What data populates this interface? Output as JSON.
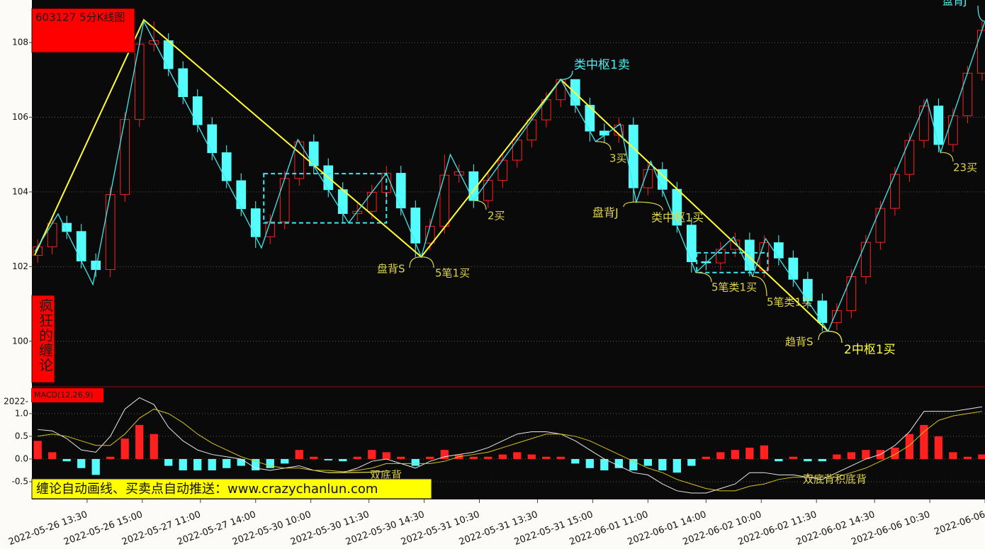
{
  "chart_data": [
    {
      "type": "candlestick",
      "title": "603127 5分K线图",
      "subtitle": "疯狂的缠论",
      "x": [
        2,
        7,
        12,
        17,
        22,
        27,
        32,
        37,
        42,
        47,
        52,
        57,
        62,
        67,
        72,
        77,
        82,
        87,
        92,
        97,
        102,
        107,
        112,
        117,
        122,
        127,
        132,
        137,
        142,
        147,
        152,
        157,
        162,
        167,
        172,
        177,
        182,
        187,
        192,
        197,
        202,
        207,
        212,
        217,
        222,
        227,
        232,
        237,
        242,
        247,
        252,
        257,
        262,
        267,
        272,
        277,
        282,
        287,
        292,
        297,
        302,
        307,
        312,
        317,
        322,
        327
      ],
      "open": [
        102.3,
        102.53,
        103.16,
        102.94,
        102.15,
        101.92,
        103.93,
        105.94,
        107.96,
        108.05,
        107.3,
        106.55,
        105.8,
        105.05,
        104.3,
        103.55,
        102.8,
        103.2,
        104.36,
        105.34,
        104.7,
        104.06,
        103.42,
        103.48,
        103.99,
        104.5,
        103.57,
        102.63,
        103.08,
        104.45,
        104.54,
        103.77,
        104.31,
        104.85,
        105.39,
        105.93,
        106.47,
        107.01,
        106.32,
        105.63,
        105.52,
        105.79,
        104.11,
        104.6,
        104.07,
        103.11,
        102.13,
        102.1,
        102.46,
        102.71,
        101.9,
        102.64,
        102.23,
        101.66,
        101.08,
        100.5,
        100.82,
        101.73,
        102.65,
        103.56,
        104.47,
        105.38,
        106.3,
        105.27,
        106.04,
        107.18
      ],
      "high": [
        102.73,
        103.36,
        103.36,
        103.14,
        102.35,
        104.13,
        106.14,
        108.16,
        108.57,
        108.25,
        107.5,
        106.75,
        106.0,
        105.25,
        104.5,
        103.75,
        103.4,
        104.56,
        105.4,
        105.54,
        104.9,
        104.26,
        103.68,
        104.19,
        104.7,
        104.7,
        103.77,
        103.28,
        105.0,
        104.74,
        104.74,
        104.51,
        105.05,
        105.59,
        106.13,
        106.67,
        107.01,
        107.01,
        106.52,
        105.83,
        105.99,
        105.99,
        104.82,
        104.8,
        104.27,
        103.31,
        102.33,
        102.66,
        102.91,
        102.91,
        102.84,
        102.84,
        102.43,
        101.86,
        101.28,
        101.02,
        101.93,
        102.85,
        103.76,
        104.67,
        105.58,
        106.48,
        106.5,
        106.24,
        107.38,
        108.57
      ],
      "low": [
        102.1,
        102.33,
        102.74,
        101.95,
        101.72,
        101.72,
        103.73,
        105.74,
        107.76,
        107.1,
        106.35,
        105.6,
        104.85,
        104.1,
        103.35,
        102.5,
        102.6,
        103.0,
        104.16,
        104.5,
        103.86,
        103.17,
        103.22,
        103.28,
        103.79,
        103.37,
        102.26,
        102.43,
        102.88,
        104.25,
        103.57,
        103.57,
        104.11,
        104.65,
        105.19,
        105.73,
        106.27,
        106.12,
        105.35,
        105.32,
        105.32,
        103.73,
        103.91,
        103.87,
        102.91,
        101.84,
        101.9,
        101.9,
        102.26,
        101.74,
        101.7,
        102.03,
        101.46,
        100.88,
        100.27,
        100.3,
        100.62,
        101.53,
        102.45,
        103.36,
        104.27,
        105.18,
        105.06,
        105.07,
        105.84,
        106.98
      ],
      "close": [
        102.53,
        103.16,
        102.94,
        102.15,
        101.92,
        103.93,
        105.94,
        107.96,
        108.05,
        107.3,
        106.55,
        105.8,
        105.05,
        104.3,
        103.55,
        102.8,
        103.2,
        104.36,
        105.34,
        104.7,
        104.06,
        103.42,
        103.48,
        103.99,
        104.5,
        103.57,
        102.63,
        103.08,
        104.45,
        104.54,
        103.77,
        104.31,
        104.85,
        105.39,
        105.93,
        106.47,
        107.01,
        106.32,
        105.63,
        105.52,
        105.79,
        104.11,
        104.6,
        104.07,
        103.11,
        102.13,
        102.1,
        102.46,
        102.71,
        101.9,
        102.64,
        102.23,
        101.66,
        101.08,
        100.5,
        100.82,
        101.73,
        102.65,
        103.56,
        104.47,
        105.38,
        106.3,
        105.27,
        106.04,
        107.18,
        108.33
      ],
      "up_color": "#ff2020",
      "down_color": "#54fcfc",
      "xlim": [
        0,
        328
      ],
      "ylim": [
        98.8,
        109.14
      ],
      "yticks": [
        100,
        102,
        104,
        106,
        108
      ],
      "grid": true,
      "lines": [
        {
          "color": "#ffff30",
          "x": [
            1,
            38.5,
            134,
            182,
            274
          ],
          "y": [
            102.31,
            108.61,
            102.26,
            107.01,
            100.27
          ]
        },
        {
          "color": "#3ee8ee",
          "x": [
            1,
            9,
            21,
            38.5,
            79,
            91.5,
            109,
            122,
            134,
            144,
            152,
            182,
            194,
            202.5,
            208,
            213,
            228.5,
            241.5,
            248,
            252.5,
            274,
            308,
            312.7,
            328
          ],
          "y": [
            102.4,
            103.41,
            101.52,
            108.57,
            102.5,
            105.4,
            103.17,
            104.5,
            102.26,
            105.0,
            103.77,
            107.01,
            105.35,
            105.82,
            103.73,
            104.82,
            101.84,
            102.79,
            101.74,
            102.75,
            100.27,
            106.48,
            105.06,
            108.57
          ]
        }
      ],
      "zones": [
        {
          "color": "#3ee8ee",
          "x": [
            79.8,
            122
          ],
          "y": [
            103.17,
            104.49
          ]
        },
        {
          "color": "#3ee8ee",
          "x": [
            228.8,
            253.2
          ],
          "y": [
            101.84,
            102.37
          ]
        }
      ],
      "annotations": [
        {
          "text": "类中枢1卖",
          "x": 182,
          "y": 107.01,
          "color": "#4ff0f0"
        },
        {
          "text": "3买",
          "x": 194,
          "y": 105.35,
          "color": "#dcd34a"
        },
        {
          "text": "盘背J",
          "x": 208,
          "y": 103.73,
          "color": "#dcd34a"
        },
        {
          "text": "类中枢1买",
          "x": 208,
          "y": 103.73,
          "color": "#dcd34a"
        },
        {
          "text": "2买",
          "x": 152,
          "y": 103.77,
          "color": "#dcd34a"
        },
        {
          "text": "盘背S",
          "x": 134,
          "y": 102.26,
          "color": "#dcd34a"
        },
        {
          "text": "5笔1买",
          "x": 134,
          "y": 102.26,
          "color": "#dcd34a"
        },
        {
          "text": "5笔类1买",
          "x": 228.5,
          "y": 101.84,
          "color": "#dcd34a"
        },
        {
          "text": "5笔类1买",
          "x": 248,
          "y": 101.74,
          "color": "#dcd34a"
        },
        {
          "text": "趋背S",
          "x": 274,
          "y": 100.27,
          "color": "#dcd34a"
        },
        {
          "text": "2中枢1买",
          "x": 274,
          "y": 100.27,
          "color": "#ffff40"
        },
        {
          "text": "23买",
          "x": 312.7,
          "y": 105.06,
          "color": "#dcd34a"
        },
        {
          "text": "盘背J",
          "x": 328,
          "y": 108.57,
          "color": "#4ff0f0"
        }
      ]
    },
    {
      "type": "macd",
      "title": "MACD(12,26,9)",
      "top_label": "2022-",
      "banner": "缠论自动画线、买卖点自动推送：www.crazychanlun.com",
      "x": [
        2,
        7,
        12,
        17,
        22,
        27,
        32,
        37,
        42,
        47,
        52,
        57,
        62,
        67,
        72,
        77,
        82,
        87,
        92,
        97,
        102,
        107,
        112,
        117,
        122,
        127,
        132,
        137,
        142,
        147,
        152,
        157,
        162,
        167,
        172,
        177,
        182,
        187,
        192,
        197,
        202,
        207,
        212,
        217,
        222,
        227,
        232,
        237,
        242,
        247,
        252,
        257,
        262,
        267,
        272,
        277,
        282,
        287,
        292,
        297,
        302,
        307,
        312,
        317,
        322,
        327
      ],
      "values": [
        0.4,
        0.15,
        -0.05,
        -0.2,
        -0.35,
        0.05,
        0.45,
        0.75,
        0.55,
        -0.15,
        -0.25,
        -0.25,
        -0.25,
        -0.2,
        -0.15,
        -0.25,
        -0.2,
        -0.1,
        0.2,
        0.05,
        -0.03,
        -0.05,
        0.05,
        0.2,
        0.15,
        0.05,
        -0.15,
        0.05,
        0.2,
        0.1,
        0.05,
        0.05,
        0.1,
        0.15,
        0.1,
        0.05,
        0.05,
        -0.1,
        -0.2,
        -0.25,
        -0.2,
        -0.25,
        -0.15,
        -0.25,
        -0.3,
        -0.15,
        0.05,
        0.15,
        0.2,
        0.25,
        0.3,
        -0.05,
        0.05,
        -0.05,
        -0.05,
        0.1,
        0.15,
        0.2,
        0.2,
        0.25,
        0.55,
        0.75,
        0.5,
        0.15,
        0.05,
        0.1
      ],
      "pos_color": "#ff2020",
      "neg_color": "#54fcfc",
      "series": [
        {
          "color": "#e8e8e8",
          "values": [
            0.65,
            0.62,
            0.45,
            0.2,
            0.15,
            0.5,
            1.1,
            1.35,
            1.2,
            0.7,
            0.4,
            0.2,
            0.1,
            0.05,
            0.0,
            -0.2,
            -0.25,
            -0.2,
            -0.15,
            -0.25,
            -0.3,
            -0.3,
            -0.2,
            -0.05,
            0.0,
            -0.1,
            -0.2,
            -0.05,
            0.05,
            0.1,
            0.15,
            0.25,
            0.4,
            0.55,
            0.6,
            0.6,
            0.55,
            0.4,
            0.2,
            0.0,
            -0.15,
            -0.3,
            -0.35,
            -0.55,
            -0.7,
            -0.75,
            -0.75,
            -0.65,
            -0.55,
            -0.3,
            -0.3,
            -0.35,
            -0.35,
            -0.4,
            -0.45,
            -0.3,
            -0.15,
            0.0,
            0.1,
            0.3,
            0.6,
            1.05,
            1.05,
            1.05,
            1.1,
            1.15
          ]
        },
        {
          "color": "#d8c020",
          "values": [
            0.5,
            0.55,
            0.5,
            0.4,
            0.3,
            0.3,
            0.55,
            0.9,
            1.1,
            1.0,
            0.8,
            0.55,
            0.35,
            0.2,
            0.05,
            -0.05,
            -0.15,
            -0.2,
            -0.2,
            -0.25,
            -0.25,
            -0.28,
            -0.25,
            -0.2,
            -0.1,
            -0.1,
            -0.1,
            -0.1,
            -0.05,
            0.05,
            0.1,
            0.15,
            0.25,
            0.35,
            0.45,
            0.55,
            0.55,
            0.5,
            0.4,
            0.25,
            0.1,
            -0.05,
            -0.2,
            -0.3,
            -0.45,
            -0.55,
            -0.65,
            -0.7,
            -0.7,
            -0.6,
            -0.55,
            -0.45,
            -0.4,
            -0.4,
            -0.4,
            -0.4,
            -0.3,
            -0.2,
            -0.05,
            0.1,
            0.3,
            0.6,
            0.85,
            0.95,
            1.0,
            1.05
          ]
        }
      ],
      "xlim": [
        0,
        328
      ],
      "ylim": [
        -0.89,
        1.56
      ],
      "yticks": [
        -0.5,
        {
          "value": 0,
          "label": "0.0"
        },
        0.5,
        {
          "value": 1,
          "label": "1.0"
        }
      ],
      "grid": true,
      "xticks": [
        {
          "value": 19,
          "label": "2022-05-26 13:30"
        },
        {
          "value": 38,
          "label": "2022-05-26 15:00"
        },
        {
          "value": 58,
          "label": "2022-05-27 11:00"
        },
        {
          "value": 77,
          "label": "2022-05-27 14:00"
        },
        {
          "value": 96,
          "label": "2022-05-30 10:00"
        },
        {
          "value": 116,
          "label": "2022-05-30 11:30"
        },
        {
          "value": 135,
          "label": "2022-05-30 14:30"
        },
        {
          "value": 154,
          "label": "2022-05-31 10:30"
        },
        {
          "value": 174,
          "label": "2022-05-31 13:30"
        },
        {
          "value": 193,
          "label": "2022-05-31 15:00"
        },
        {
          "value": 212,
          "label": "2022-06-01 11:00"
        },
        {
          "value": 232,
          "label": "2022-06-01 14:00"
        },
        {
          "value": 251,
          "label": "2022-06-02 10:00"
        },
        {
          "value": 270,
          "label": "2022-06-02 11:30"
        },
        {
          "value": 290,
          "label": "2022-06-02 14:30"
        },
        {
          "value": 309,
          "label": "2022-06-06 10:30"
        },
        {
          "value": 328,
          "label": "2022-06-06"
        }
      ],
      "annotations": [
        {
          "text": "双底背",
          "x": 102,
          "y": -0.3,
          "color": "#dcd34a"
        },
        {
          "text": "双底背积底背",
          "x": 267,
          "y": -0.4,
          "color": "#dcd34a"
        }
      ]
    }
  ]
}
